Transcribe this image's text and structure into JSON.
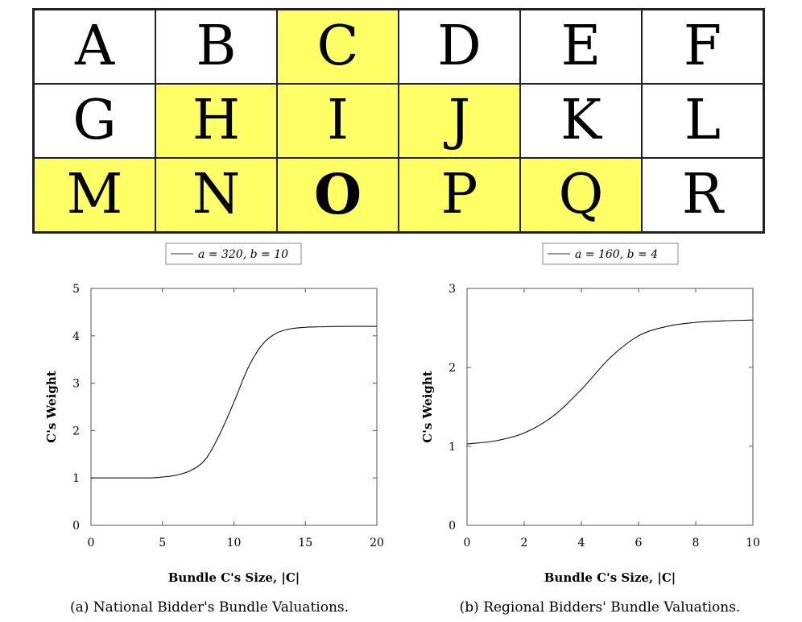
{
  "grid": {
    "cells": [
      {
        "letter": "A",
        "highlighted": false
      },
      {
        "letter": "B",
        "highlighted": false
      },
      {
        "letter": "C",
        "highlighted": true
      },
      {
        "letter": "D",
        "highlighted": false
      },
      {
        "letter": "E",
        "highlighted": false
      },
      {
        "letter": "F",
        "highlighted": false
      },
      {
        "letter": "G",
        "highlighted": false
      },
      {
        "letter": "H",
        "highlighted": true
      },
      {
        "letter": "I",
        "highlighted": true
      },
      {
        "letter": "J",
        "highlighted": true
      },
      {
        "letter": "K",
        "highlighted": false
      },
      {
        "letter": "L",
        "highlighted": false
      },
      {
        "letter": "M",
        "highlighted": true
      },
      {
        "letter": "N",
        "highlighted": true
      },
      {
        "letter": "O",
        "highlighted": true,
        "bold": true
      },
      {
        "letter": "P",
        "highlighted": true
      },
      {
        "letter": "Q",
        "highlighted": true
      },
      {
        "letter": "R",
        "highlighted": false
      }
    ],
    "highlight_color": "#ffff66"
  },
  "chart_data": [
    {
      "type": "line",
      "legend": "a = 320, b = 10",
      "legend_position": "top-center",
      "xlabel": "Bundle C's Size, |C|",
      "ylabel": "C's Weight",
      "xlim": [
        0,
        20
      ],
      "ylim": [
        0,
        5
      ],
      "xticks": [
        0,
        5,
        10,
        15,
        20
      ],
      "yticks": [
        0,
        1,
        2,
        3,
        4,
        5
      ],
      "caption": "(a) National Bidder's Bundle Valuations.",
      "series": [
        {
          "x": [
            0,
            2,
            4,
            5,
            6,
            7,
            8,
            9,
            10,
            11,
            12,
            13,
            14,
            15,
            16,
            18,
            20
          ],
          "y": [
            1.0,
            1.0,
            1.0,
            1.02,
            1.06,
            1.16,
            1.39,
            1.92,
            2.6,
            3.33,
            3.82,
            4.06,
            4.15,
            4.18,
            4.19,
            4.2,
            4.2
          ]
        }
      ],
      "grid": false
    },
    {
      "type": "line",
      "legend": "a = 160, b = 4",
      "legend_position": "top-center",
      "xlabel": "Bundle C's Size, |C|",
      "ylabel": "C's Weight",
      "xlim": [
        0,
        10
      ],
      "ylim": [
        0,
        3
      ],
      "xticks": [
        0,
        2,
        4,
        6,
        8,
        10
      ],
      "yticks": [
        0,
        1,
        2,
        3
      ],
      "caption": "(b) Regional Bidders' Bundle Valuations.",
      "series": [
        {
          "x": [
            0,
            1,
            2,
            3,
            4,
            5,
            6,
            7,
            8,
            9,
            10
          ],
          "y": [
            1.03,
            1.07,
            1.17,
            1.38,
            1.72,
            2.12,
            2.4,
            2.52,
            2.57,
            2.59,
            2.6
          ]
        }
      ],
      "grid": false
    }
  ]
}
